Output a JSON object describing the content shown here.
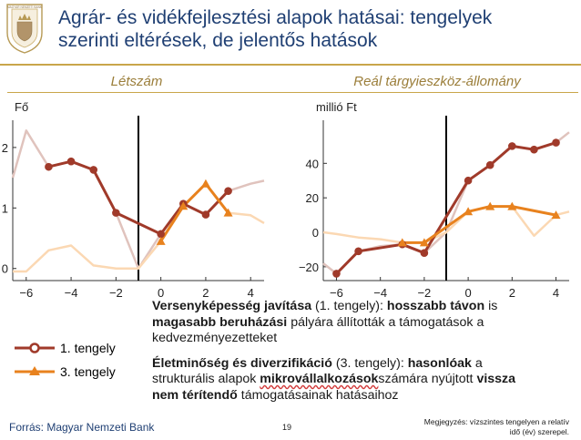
{
  "header": {
    "title_line1": "Agrár- és vidékfejlesztési alapok hatásai: tengelyek",
    "title_line2": "szerinti eltérések, de jelentős hatások",
    "logo_text": "MAGYAR NEMZETI BANK"
  },
  "chart_data": [
    {
      "type": "line",
      "title": "Létszám",
      "ylabel": "Fő",
      "xlabel": "",
      "xlim": [
        -6.6,
        4.6
      ],
      "ylim": [
        -0.2,
        2.45
      ],
      "xticks": [
        -6,
        -4,
        -2,
        0,
        2,
        4
      ],
      "xtick_labels": [
        "−6",
        "−4",
        "−2",
        "0",
        "2",
        "4"
      ],
      "yticks": [
        0,
        1,
        2
      ],
      "ytick_labels": [
        "0",
        "1",
        "2"
      ],
      "event_line_x": -1,
      "series": [
        {
          "name": "1. tengely",
          "color": "#a03a2a",
          "width": 3,
          "marker": "circle",
          "x": [
            -5,
            -4,
            -3,
            -2,
            0,
            1,
            2,
            3
          ],
          "y": [
            1.68,
            1.77,
            1.63,
            0.92,
            0.57,
            1.07,
            0.89,
            1.28
          ]
        },
        {
          "name": "3. tengely",
          "color": "#e8821e",
          "width": 3,
          "marker": "triangle",
          "x": [
            0,
            1,
            2,
            3
          ],
          "y": [
            0.45,
            1.03,
            1.4,
            0.92
          ]
        },
        {
          "name": "",
          "color": "#e0c3bd",
          "width": 2.5,
          "marker": "none",
          "x": [
            -6.6,
            -6,
            -5,
            -4,
            -3,
            -2,
            -1,
            0,
            1,
            2,
            3,
            4,
            4.6
          ],
          "y": [
            1.5,
            2.28,
            1.68,
            1.77,
            1.63,
            0.92,
            0.0,
            0.57,
            1.07,
            0.89,
            1.28,
            1.4,
            1.45
          ]
        },
        {
          "name": "",
          "color": "#fbd8b3",
          "width": 2.5,
          "marker": "none",
          "x": [
            -6.6,
            -6,
            -5,
            -4,
            -3,
            -2,
            -1,
            0,
            1,
            2,
            3,
            4,
            4.6
          ],
          "y": [
            -0.05,
            -0.05,
            0.3,
            0.38,
            0.05,
            0.0,
            0.0,
            0.45,
            1.03,
            1.4,
            0.92,
            0.88,
            0.75
          ]
        }
      ]
    },
    {
      "type": "line",
      "title": "Reál tárgyieszköz-állomány",
      "ylabel": "millió Ft",
      "xlabel": "",
      "xlim": [
        -6.6,
        4.6
      ],
      "ylim": [
        -28,
        65
      ],
      "xticks": [
        -6,
        -4,
        -2,
        0,
        2,
        4
      ],
      "xtick_labels": [
        "−6",
        "−4",
        "−2",
        "0",
        "2",
        "4"
      ],
      "yticks": [
        -20,
        0,
        20,
        40
      ],
      "ytick_labels": [
        "−20",
        "0",
        "20",
        "40"
      ],
      "event_line_x": -1,
      "series": [
        {
          "name": "1. tengely",
          "color": "#a03a2a",
          "width": 3,
          "marker": "circle",
          "x": [
            -6,
            -5,
            -3,
            -2,
            0,
            1,
            2,
            3,
            4
          ],
          "y": [
            -24,
            -11,
            -7,
            -12,
            30,
            39,
            50,
            48,
            52
          ]
        },
        {
          "name": "3. tengely",
          "color": "#e8821e",
          "width": 3,
          "marker": "triangle",
          "x": [
            -3,
            -2,
            0,
            1,
            2,
            4
          ],
          "y": [
            -6,
            -6,
            12,
            15,
            15,
            10
          ]
        },
        {
          "name": "",
          "color": "#e0c3bd",
          "width": 2.5,
          "marker": "none",
          "x": [
            -6.6,
            -6,
            -5,
            -4,
            -3,
            -2,
            -1,
            0,
            1,
            2,
            3,
            4,
            4.6
          ],
          "y": [
            -18,
            -24,
            -11,
            -8,
            -7,
            -12,
            0,
            30,
            39,
            50,
            48,
            52,
            58
          ]
        },
        {
          "name": "",
          "color": "#fbd8b3",
          "width": 2.5,
          "marker": "none",
          "x": [
            -6.6,
            -6,
            -5,
            -4,
            -3,
            -2,
            -1,
            0,
            1,
            2,
            3,
            4,
            4.6
          ],
          "y": [
            0,
            -1,
            -3,
            -4,
            -6,
            -6,
            0,
            12,
            15,
            15,
            -2,
            10,
            12
          ]
        }
      ]
    }
  ],
  "legend": {
    "items": [
      {
        "label": "1. tengely",
        "color": "#a03a2a",
        "marker": "circle"
      },
      {
        "label": "3. tengely",
        "color": "#e8821e",
        "marker": "triangle"
      }
    ]
  },
  "text_block": {
    "p1": {
      "b1": "Versenyképesség javítása",
      "t1": " (1. tengely): ",
      "b2": "hosszabb távon",
      "t2": " is ",
      "b3": "magasabb beruházási",
      "t3": " pályára állították a támogatások a kedvezményezetteket"
    },
    "p2": {
      "b1": "Életminőség és diverzifikáció",
      "t1": " (3. tengely): ",
      "b2": "hasonlóak",
      "t2": " a strukturális alapok ",
      "b3": "mikrovállalkozások",
      "t3": "számára nyújtott ",
      "b4": "vissza nem térítendő",
      "t4": " támogatásainak hatásaihoz"
    }
  },
  "footer": {
    "source": "Forrás: Magyar Nemzeti Bank",
    "page_number": "19",
    "note": "Megjegyzés: vízszintes tengelyen a relatív idő (év) szerepel."
  }
}
